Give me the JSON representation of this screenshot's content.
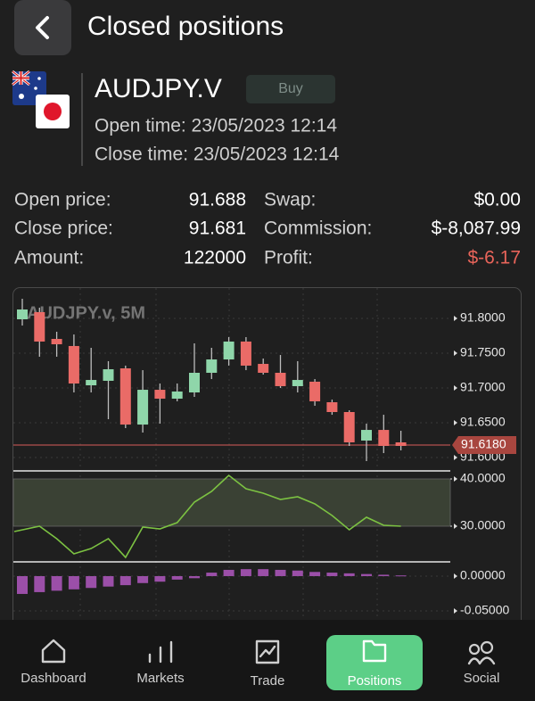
{
  "header": {
    "title": "Closed positions"
  },
  "position": {
    "symbol": "AUDJPY.V",
    "side": "Buy",
    "open_time": "Open time: 23/05/2023 12:14",
    "close_time": "Close time: 23/05/2023 12:14"
  },
  "stats": {
    "rows": [
      [
        {
          "label": "Open price:",
          "value": "91.688"
        },
        {
          "label": "Swap:",
          "value": "$0.00"
        }
      ],
      [
        {
          "label": "Close price:",
          "value": "91.681"
        },
        {
          "label": "Commission:",
          "value": "$-8,087.99"
        }
      ],
      [
        {
          "label": "Amount:",
          "value": "122000"
        },
        {
          "label": "Profit:",
          "value": "$-6.17"
        }
      ]
    ]
  },
  "chart": {
    "type": "candlestick",
    "title": "AUDJPY.v, 5M",
    "up_color": "#8fd6aa",
    "down_color": "#ea6b67",
    "ylim": [
      91.5808,
      91.8346
    ],
    "yticks": [
      {
        "value": 91.8,
        "label": "91.8000"
      },
      {
        "value": 91.75,
        "label": "91.7500"
      },
      {
        "value": 91.7,
        "label": "91.7000"
      },
      {
        "value": 91.65,
        "label": "91.6500"
      },
      {
        "value": 91.6,
        "label": "91.6000"
      }
    ],
    "last_price": {
      "value": 91.618,
      "label": "91.6180"
    },
    "candles": {
      "open": [
        91.7987,
        91.809,
        91.7705,
        91.7603,
        91.7038,
        91.7103,
        91.7282,
        91.6474,
        91.6974,
        91.6846,
        91.6936,
        91.7218,
        91.741,
        91.7667,
        91.7346,
        91.7218,
        91.7026,
        91.709,
        91.6795,
        91.6654,
        91.6244,
        91.6397,
        91.6218
      ],
      "high": [
        91.8282,
        91.8154,
        91.7808,
        91.7769,
        91.7577,
        91.7385,
        91.7321,
        91.7256,
        91.7064,
        91.7064,
        91.7641,
        91.7577,
        91.7731,
        91.7731,
        91.7423,
        91.7474,
        91.7385,
        91.7128,
        91.6833,
        91.6679,
        91.6487,
        91.6615,
        91.6385
      ],
      "low": [
        91.7897,
        91.7449,
        91.7449,
        91.6936,
        91.6936,
        91.6551,
        91.6423,
        91.6359,
        91.6487,
        91.6808,
        91.6872,
        91.7128,
        91.7321,
        91.7256,
        91.7192,
        91.7,
        91.6936,
        91.6744,
        91.6615,
        91.6167,
        91.5949,
        91.6064,
        91.6103
      ],
      "close": [
        91.8128,
        91.7667,
        91.7628,
        91.7064,
        91.7115,
        91.7269,
        91.6474,
        91.6974,
        91.6846,
        91.6949,
        91.7218,
        91.741,
        91.7667,
        91.7321,
        91.7218,
        91.7026,
        91.7115,
        91.6808,
        91.6654,
        91.6218,
        91.6397,
        91.6167,
        91.6167
      ]
    },
    "oscillator": {
      "color": "#7cc242",
      "band": [
        30,
        40
      ],
      "ylim": [
        22.83,
        41.32
      ],
      "yticks": [
        {
          "value": 40,
          "label": "40.0000"
        },
        {
          "value": 30,
          "label": "30.0000"
        }
      ],
      "values": [
        28.87,
        30.0,
        27.36,
        24.15,
        25.28,
        27.36,
        23.4,
        29.81,
        29.43,
        30.75,
        35.09,
        37.36,
        40.75,
        37.92,
        36.98,
        35.66,
        36.23,
        34.72,
        32.26,
        29.25,
        31.89,
        30.19,
        30.0
      ]
    },
    "histogram": {
      "color": "#9b4fa8",
      "ylim": [
        -0.0628,
        0.0179
      ],
      "yticks": [
        {
          "value": 0,
          "label": "0.00000"
        },
        {
          "value": -0.05,
          "label": "-0.05000"
        }
      ],
      "values": [
        -0.0256,
        -0.023,
        -0.021,
        -0.019,
        -0.017,
        -0.015,
        -0.013,
        -0.01,
        -0.008,
        -0.005,
        -0.003,
        0.005,
        0.009,
        0.01,
        0.01,
        0.009,
        0.008,
        0.006,
        0.005,
        0.004,
        0.003,
        0.002,
        0.001
      ]
    }
  },
  "nav": {
    "items": [
      "Dashboard",
      "Markets",
      "Trade",
      "Positions",
      "Social"
    ],
    "active": 3
  }
}
